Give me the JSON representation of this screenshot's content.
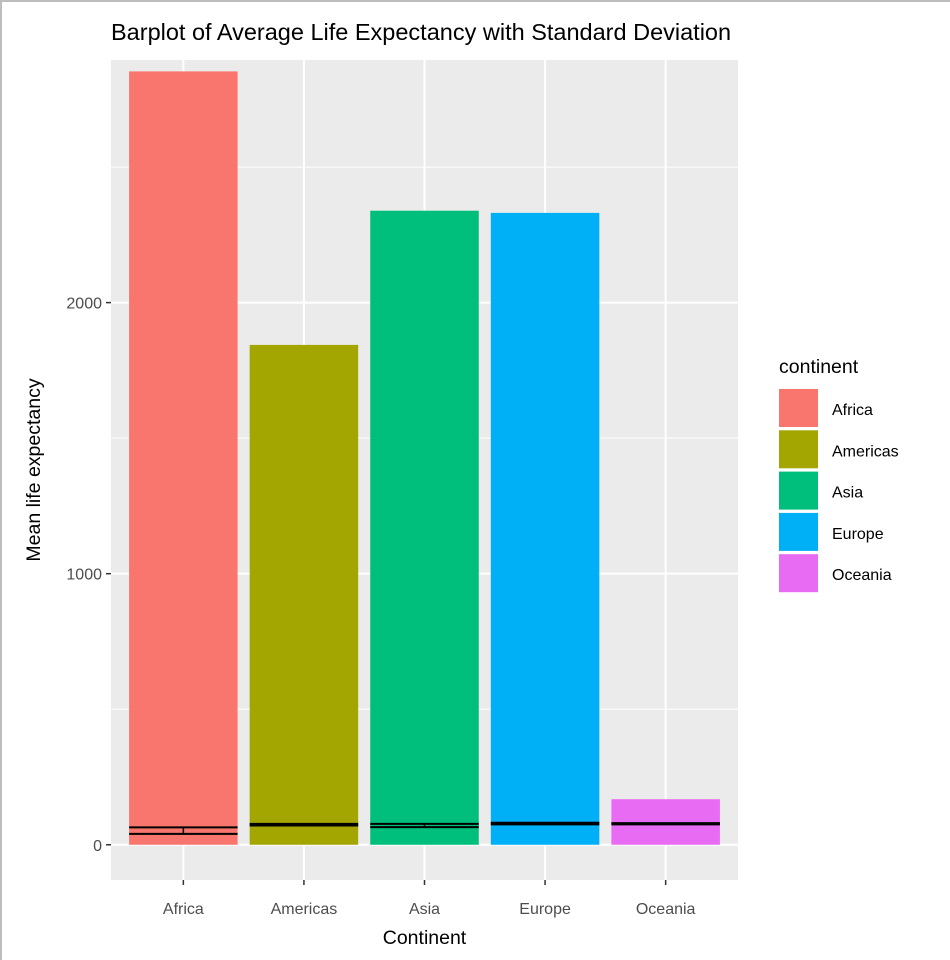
{
  "chart_data": {
    "type": "bar",
    "title": "Barplot of Average Life Expectancy with Standard Deviation",
    "xlabel": "Continent",
    "ylabel": "Mean life expectancy",
    "categories": [
      "Africa",
      "Americas",
      "Asia",
      "Europe",
      "Oceania"
    ],
    "values": [
      2853,
      1844,
      2339,
      2331,
      168
    ],
    "error_bars": [
      {
        "category": "Africa",
        "low": 40,
        "high": 64
      },
      {
        "category": "Americas",
        "low": 71,
        "high": 77
      },
      {
        "category": "Asia",
        "low": 65,
        "high": 77
      },
      {
        "category": "Europe",
        "low": 75,
        "high": 81
      },
      {
        "category": "Oceania",
        "low": 75,
        "high": 80
      }
    ],
    "colors": [
      "#F8766D",
      "#A3A500",
      "#00BF7D",
      "#00B0F6",
      "#E76BF3"
    ],
    "ylim": [
      -130,
      2895
    ],
    "y_ticks": [
      0,
      1000,
      2000
    ],
    "y_tick_labels": [
      "0",
      "1000",
      "2000"
    ],
    "y_minor_ticks": [
      500,
      1500,
      2500
    ],
    "grid": true,
    "panel_background": "#EBEBEB",
    "legend": {
      "title": "continent",
      "placement": "right",
      "entries": [
        "Africa",
        "Americas",
        "Asia",
        "Europe",
        "Oceania"
      ]
    }
  }
}
